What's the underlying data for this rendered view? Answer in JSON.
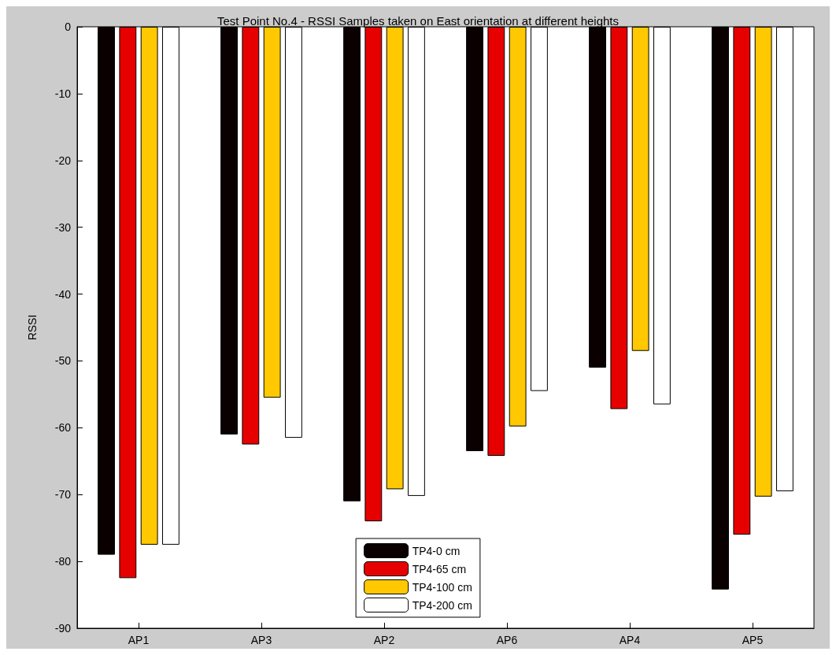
{
  "chart_data": {
    "type": "bar",
    "title": "Test Point No.4 - RSSI Samples taken on East orientation at different heights",
    "ylabel": "RSSI",
    "categories": [
      "AP1",
      "AP3",
      "AP2",
      "AP6",
      "AP4",
      "AP5"
    ],
    "series": [
      {
        "name": "TP4-0 cm",
        "color": "#0a0000",
        "values": [
          -79,
          -61,
          -71,
          -63.5,
          -51,
          -84.2
        ]
      },
      {
        "name": "TP4-65 cm",
        "color": "#e60000",
        "values": [
          -82.5,
          -62.5,
          -74,
          -64.2,
          -57.2,
          -76
        ]
      },
      {
        "name": "TP4-100 cm",
        "color": "#ffc800",
        "values": [
          -77.5,
          -55.5,
          -69.2,
          -59.8,
          -48.5,
          -70.3
        ]
      },
      {
        "name": "TP4-200 cm",
        "color": "#ffffff",
        "values": [
          -77.5,
          -61.5,
          -70.2,
          -54.5,
          -56.5,
          -69.5
        ]
      }
    ],
    "ylim": [
      -90,
      0
    ],
    "yticks": [
      -90,
      -80,
      -70,
      -60,
      -50,
      -40,
      -30,
      -20,
      -10,
      0
    ],
    "grid": false,
    "legend": "bottom"
  }
}
